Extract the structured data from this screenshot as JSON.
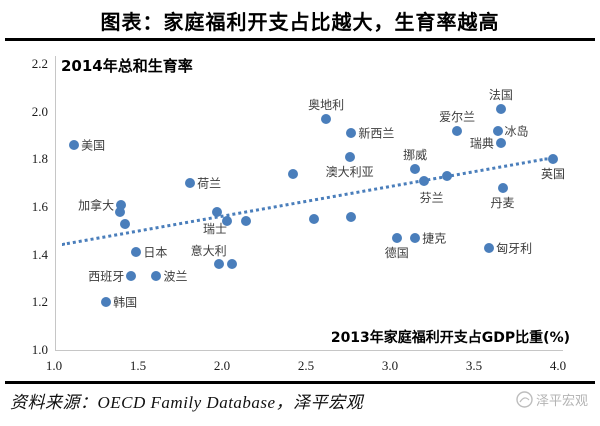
{
  "title": "图表：家庭福利开支占比越大，生育率越高",
  "accent_color": "#4a7ebb",
  "source": {
    "text": "资料来源：OECD Family Database，泽平宏观",
    "watermark": "泽平宏观"
  },
  "chart_data": {
    "type": "scatter",
    "title": "图表：家庭福利开支占比越大，生育率越高",
    "ylabel": "2014年总和生育率",
    "xlabel": "2013年家庭福利开支占GDP比重(%)",
    "xlim": [
      1.0,
      4.0
    ],
    "ylim": [
      1.0,
      2.2
    ],
    "xticks": [
      1.0,
      1.5,
      2.0,
      2.5,
      3.0,
      3.5,
      4.0
    ],
    "yticks": [
      1.0,
      1.2,
      1.4,
      1.6,
      1.8,
      2.0,
      2.2
    ],
    "grid": false,
    "legend": "none",
    "point_color": "#4a7ebb",
    "points": [
      {
        "label": "美国",
        "x": 1.12,
        "y": 1.86,
        "label_pos": "right"
      },
      {
        "label": "加拿大",
        "x": 1.4,
        "y": 1.61,
        "label_pos": "left"
      },
      {
        "label": "",
        "x": 1.39,
        "y": 1.58
      },
      {
        "label": "",
        "x": 1.42,
        "y": 1.53
      },
      {
        "label": "日本",
        "x": 1.49,
        "y": 1.41,
        "label_pos": "right"
      },
      {
        "label": "西班牙",
        "x": 1.46,
        "y": 1.31,
        "label_pos": "left"
      },
      {
        "label": "波兰",
        "x": 1.61,
        "y": 1.31,
        "label_pos": "right"
      },
      {
        "label": "韩国",
        "x": 1.31,
        "y": 1.2,
        "label_pos": "right"
      },
      {
        "label": "荷兰",
        "x": 1.81,
        "y": 1.7,
        "label_pos": "right"
      },
      {
        "label": "瑞士",
        "x": 1.97,
        "y": 1.58,
        "label_pos": "below-left"
      },
      {
        "label": "",
        "x": 2.03,
        "y": 1.54
      },
      {
        "label": "",
        "x": 2.14,
        "y": 1.54
      },
      {
        "label": "意大利",
        "x": 1.98,
        "y": 1.36,
        "label_pos": "above-left"
      },
      {
        "label": "",
        "x": 2.06,
        "y": 1.36
      },
      {
        "label": "",
        "x": 2.42,
        "y": 1.74
      },
      {
        "label": "",
        "x": 2.55,
        "y": 1.55
      },
      {
        "label": "",
        "x": 2.77,
        "y": 1.56
      },
      {
        "label": "奥地利",
        "x": 2.62,
        "y": 1.97,
        "label_pos": "above"
      },
      {
        "label": "新西兰",
        "x": 2.77,
        "y": 1.91,
        "label_pos": "right"
      },
      {
        "label": "澳大利亚",
        "x": 2.76,
        "y": 1.81,
        "label_pos": "below"
      },
      {
        "label": "挪威",
        "x": 3.15,
        "y": 1.76,
        "label_pos": "above"
      },
      {
        "label": "芬兰",
        "x": 3.2,
        "y": 1.71,
        "label_pos": "below-right"
      },
      {
        "label": "",
        "x": 3.34,
        "y": 1.73
      },
      {
        "label": "爱尔兰",
        "x": 3.4,
        "y": 1.92,
        "label_pos": "above"
      },
      {
        "label": "法国",
        "x": 3.66,
        "y": 2.01,
        "label_pos": "above"
      },
      {
        "label": "冰岛",
        "x": 3.64,
        "y": 1.92,
        "label_pos": "right"
      },
      {
        "label": "瑞典",
        "x": 3.66,
        "y": 1.87,
        "label_pos": "left"
      },
      {
        "label": "英国",
        "x": 3.97,
        "y": 1.8,
        "label_pos": "below"
      },
      {
        "label": "丹麦",
        "x": 3.67,
        "y": 1.68,
        "label_pos": "below"
      },
      {
        "label": "德国",
        "x": 3.04,
        "y": 1.47,
        "label_pos": "below"
      },
      {
        "label": "捷克",
        "x": 3.15,
        "y": 1.47,
        "label_pos": "right"
      },
      {
        "label": "匈牙利",
        "x": 3.59,
        "y": 1.43,
        "label_pos": "right"
      }
    ],
    "trendline": {
      "style": "dotted",
      "x1": 1.05,
      "y1": 1.45,
      "x2": 3.94,
      "y2": 1.81
    }
  }
}
